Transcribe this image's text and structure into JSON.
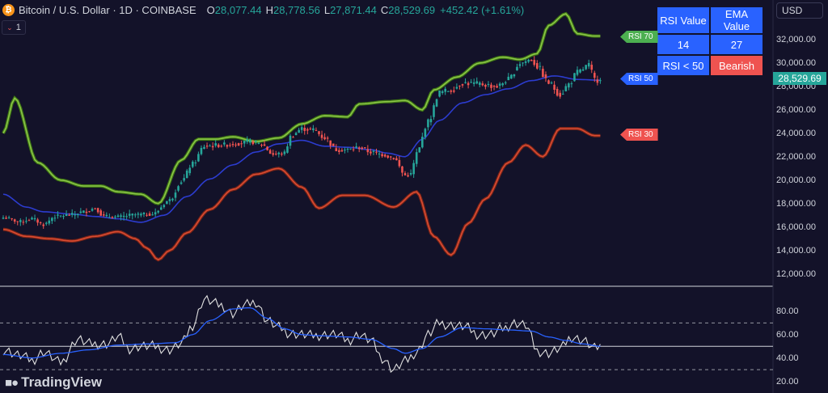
{
  "header": {
    "symbol_text": "Bitcoin / U.S. Dollar · 1D · COINBASE",
    "coin_glyph": "₿",
    "open_label": "O",
    "open_value": "28,077.44",
    "high_label": "H",
    "high_value": "28,778.56",
    "low_label": "L",
    "low_value": "27,871.44",
    "close_label": "C",
    "close_value": "28,529.69",
    "change_text": "+452.42 (+1.61%)",
    "collapse_count": "1"
  },
  "currency": "USD",
  "table": {
    "headers": [
      "RSI Value",
      "EMA Value"
    ],
    "values": [
      "14",
      "27"
    ],
    "condition": "RSI < 50",
    "signal": "Bearish"
  },
  "tags": {
    "rsi70": "RSI 70",
    "rsi50": "RSI 50",
    "rsi30": "RSI 30"
  },
  "last_price_label": "28,529.69",
  "brand": "TradingView",
  "colors": {
    "background": "#131229",
    "up": "#26a69a",
    "down": "#ef5350",
    "band_upper": "#8bc34a",
    "band_mid": "#2c3ccf",
    "band_lower": "#d84b32",
    "rsi_line": "#e0e0e0",
    "rsi_ma": "#2962ff",
    "tag_rsi70": "#4caf50",
    "tag_rsi50": "#2962ff",
    "tag_rsi30": "#ef5350"
  },
  "chart_data": [
    {
      "type": "candlestick",
      "title": "Bitcoin / U.S. Dollar · 1D · COINBASE",
      "ylim": [
        10800,
        34000
      ],
      "y_ticks": [
        12000,
        14000,
        16000,
        18000,
        20000,
        22000,
        24000,
        26000,
        28000,
        30000,
        32000
      ],
      "y_tick_labels": [
        "12,000.00",
        "14,000.00",
        "16,000.00",
        "18,000.00",
        "20,000.00",
        "22,000.00",
        "24,000.00",
        "26,000.00",
        "28,000.00",
        "30,000.00",
        "32,000.00"
      ],
      "close_anchors": [
        [
          0,
          16800
        ],
        [
          6,
          16450
        ],
        [
          10,
          16700
        ],
        [
          14,
          16200
        ],
        [
          18,
          16900
        ],
        [
          24,
          17050
        ],
        [
          28,
          17300
        ],
        [
          32,
          17600
        ],
        [
          35,
          16900
        ],
        [
          40,
          16850
        ],
        [
          46,
          17050
        ],
        [
          52,
          17100
        ],
        [
          58,
          18300
        ],
        [
          62,
          19900
        ],
        [
          66,
          21400
        ],
        [
          70,
          22900
        ],
        [
          76,
          23000
        ],
        [
          82,
          23150
        ],
        [
          86,
          23300
        ],
        [
          90,
          23050
        ],
        [
          94,
          22200
        ],
        [
          98,
          22300
        ],
        [
          100,
          23700
        ],
        [
          104,
          24400
        ],
        [
          108,
          24300
        ],
        [
          112,
          23600
        ],
        [
          116,
          22600
        ],
        [
          120,
          22600
        ],
        [
          124,
          22800
        ],
        [
          128,
          22400
        ],
        [
          132,
          22200
        ],
        [
          136,
          21900
        ],
        [
          140,
          20400
        ],
        [
          142,
          20500
        ],
        [
          144,
          22300
        ],
        [
          148,
          25000
        ],
        [
          152,
          27500
        ],
        [
          156,
          27700
        ],
        [
          160,
          28300
        ],
        [
          166,
          28200
        ],
        [
          172,
          28000
        ],
        [
          176,
          28600
        ],
        [
          180,
          30000
        ],
        [
          184,
          30300
        ],
        [
          186,
          29700
        ],
        [
          190,
          28300
        ],
        [
          194,
          27300
        ],
        [
          197,
          28200
        ],
        [
          200,
          29200
        ],
        [
          204,
          29800
        ],
        [
          206,
          28600
        ],
        [
          208,
          28530
        ]
      ],
      "upper_band_anchors": [
        [
          0,
          24000
        ],
        [
          4,
          27000
        ],
        [
          12,
          21500
        ],
        [
          20,
          20000
        ],
        [
          28,
          19500
        ],
        [
          34,
          19500
        ],
        [
          40,
          19000
        ],
        [
          48,
          18800
        ],
        [
          54,
          18000
        ],
        [
          62,
          21700
        ],
        [
          68,
          23500
        ],
        [
          74,
          23500
        ],
        [
          80,
          23700
        ],
        [
          88,
          23300
        ],
        [
          96,
          23600
        ],
        [
          104,
          24800
        ],
        [
          112,
          25500
        ],
        [
          120,
          25400
        ],
        [
          124,
          26500
        ],
        [
          134,
          26700
        ],
        [
          140,
          26800
        ],
        [
          146,
          26000
        ],
        [
          150,
          27700
        ],
        [
          158,
          28800
        ],
        [
          166,
          30000
        ],
        [
          174,
          30500
        ],
        [
          180,
          30300
        ],
        [
          186,
          30800
        ],
        [
          190,
          33200
        ],
        [
          196,
          34200
        ],
        [
          200,
          32500
        ],
        [
          206,
          32300
        ],
        [
          208,
          32300
        ]
      ],
      "mid_band_anchors": [
        [
          0,
          18800
        ],
        [
          8,
          17700
        ],
        [
          14,
          17300
        ],
        [
          24,
          17100
        ],
        [
          32,
          16900
        ],
        [
          40,
          16700
        ],
        [
          48,
          16400
        ],
        [
          56,
          17000
        ],
        [
          64,
          18600
        ],
        [
          72,
          20100
        ],
        [
          80,
          21300
        ],
        [
          88,
          22400
        ],
        [
          96,
          23100
        ],
        [
          104,
          23400
        ],
        [
          112,
          22900
        ],
        [
          120,
          22800
        ],
        [
          128,
          22600
        ],
        [
          134,
          22300
        ],
        [
          140,
          22000
        ],
        [
          146,
          23500
        ],
        [
          152,
          25100
        ],
        [
          160,
          26600
        ],
        [
          168,
          27300
        ],
        [
          176,
          27800
        ],
        [
          184,
          28500
        ],
        [
          192,
          28900
        ],
        [
          200,
          28600
        ],
        [
          208,
          28530
        ]
      ],
      "lower_band_anchors": [
        [
          0,
          15800
        ],
        [
          8,
          15200
        ],
        [
          16,
          15000
        ],
        [
          24,
          14800
        ],
        [
          32,
          15200
        ],
        [
          40,
          15600
        ],
        [
          46,
          15000
        ],
        [
          50,
          14200
        ],
        [
          54,
          13200
        ],
        [
          58,
          14000
        ],
        [
          64,
          15500
        ],
        [
          72,
          17500
        ],
        [
          80,
          19200
        ],
        [
          88,
          20500
        ],
        [
          96,
          21000
        ],
        [
          104,
          19400
        ],
        [
          110,
          17600
        ],
        [
          118,
          18700
        ],
        [
          126,
          18700
        ],
        [
          136,
          17700
        ],
        [
          144,
          19000
        ],
        [
          150,
          15200
        ],
        [
          156,
          13600
        ],
        [
          162,
          16300
        ],
        [
          168,
          18400
        ],
        [
          176,
          21500
        ],
        [
          182,
          23000
        ],
        [
          188,
          22000
        ],
        [
          194,
          24400
        ],
        [
          200,
          24400
        ],
        [
          206,
          23800
        ],
        [
          208,
          23800
        ]
      ],
      "rsi_level_tags": [
        "RSI 70",
        "RSI 50",
        "RSI 30"
      ],
      "last_price": 28529.69
    },
    {
      "type": "line",
      "title": "",
      "ylim": [
        10,
        100
      ],
      "y_ticks": [
        20,
        40,
        60,
        80
      ],
      "y_tick_labels": [
        "20.00",
        "40.00",
        "60.00",
        "80.00"
      ],
      "reference_lines": [
        {
          "value": 70,
          "style": "dashed"
        },
        {
          "value": 50,
          "style": "solid"
        },
        {
          "value": 30,
          "style": "dashed"
        }
      ],
      "series": [
        {
          "role": "rsi",
          "anchors": [
            [
              0,
              47
            ],
            [
              6,
              42
            ],
            [
              10,
              38
            ],
            [
              14,
              45
            ],
            [
              20,
              36
            ],
            [
              26,
              56
            ],
            [
              30,
              52
            ],
            [
              36,
              52
            ],
            [
              40,
              58
            ],
            [
              44,
              48
            ],
            [
              48,
              50
            ],
            [
              52,
              50
            ],
            [
              58,
              47
            ],
            [
              62,
              52
            ],
            [
              66,
              68
            ],
            [
              70,
              90
            ],
            [
              76,
              85
            ],
            [
              80,
              78
            ],
            [
              84,
              85
            ],
            [
              88,
              88
            ],
            [
              92,
              72
            ],
            [
              96,
              66
            ],
            [
              100,
              61
            ],
            [
              104,
              60
            ],
            [
              108,
              59
            ],
            [
              112,
              60
            ],
            [
              116,
              60
            ],
            [
              120,
              55
            ],
            [
              124,
              60
            ],
            [
              128,
              55
            ],
            [
              132,
              40
            ],
            [
              136,
              30
            ],
            [
              140,
              37
            ],
            [
              144,
              45
            ],
            [
              148,
              60
            ],
            [
              152,
              70
            ],
            [
              156,
              68
            ],
            [
              160,
              67
            ],
            [
              166,
              60
            ],
            [
              170,
              60
            ],
            [
              174,
              65
            ],
            [
              178,
              70
            ],
            [
              182,
              68
            ],
            [
              186,
              46
            ],
            [
              190,
              44
            ],
            [
              194,
              48
            ],
            [
              198,
              58
            ],
            [
              202,
              55
            ],
            [
              206,
              48
            ],
            [
              208,
              50
            ]
          ]
        },
        {
          "role": "rsi_ma",
          "anchors": [
            [
              0,
              43
            ],
            [
              10,
              40
            ],
            [
              20,
              44
            ],
            [
              30,
              47
            ],
            [
              40,
              51
            ],
            [
              50,
              52
            ],
            [
              60,
              53
            ],
            [
              66,
              60
            ],
            [
              72,
              72
            ],
            [
              80,
              82
            ],
            [
              86,
              83
            ],
            [
              92,
              74
            ],
            [
              98,
              65
            ],
            [
              104,
              60
            ],
            [
              110,
              59
            ],
            [
              120,
              58
            ],
            [
              128,
              56
            ],
            [
              136,
              48
            ],
            [
              140,
              44
            ],
            [
              146,
              48
            ],
            [
              152,
              58
            ],
            [
              160,
              66
            ],
            [
              168,
              65
            ],
            [
              176,
              64
            ],
            [
              184,
              63
            ],
            [
              190,
              58
            ],
            [
              196,
              55
            ],
            [
              202,
              52
            ],
            [
              208,
              50
            ]
          ]
        }
      ]
    }
  ]
}
